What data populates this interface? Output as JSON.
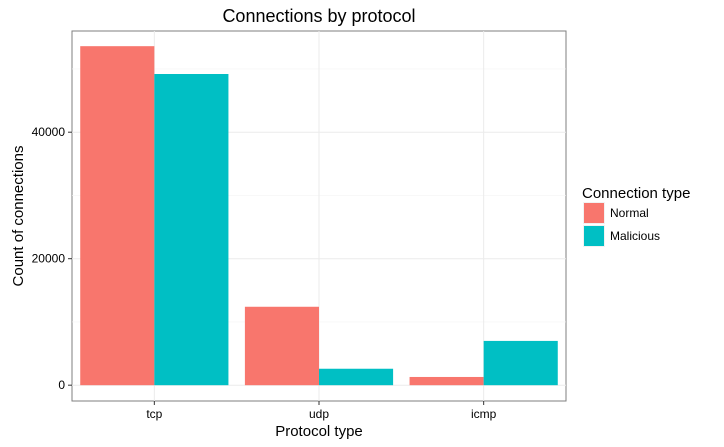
{
  "chart_data": {
    "type": "bar",
    "title": "Connections by protocol",
    "xlabel": "Protocol type",
    "ylabel": "Count of connections",
    "categories": [
      "tcp",
      "udp",
      "icmp"
    ],
    "series": [
      {
        "name": "Normal",
        "values": [
          53600,
          12400,
          1300
        ],
        "color": "#F8766D"
      },
      {
        "name": "Malicious",
        "values": [
          49200,
          2600,
          7000
        ],
        "color": "#00BFC4"
      }
    ],
    "ylim": [
      -2500,
      56000
    ],
    "yticks": [
      0,
      20000,
      40000
    ],
    "ytick_labels": [
      "0",
      "20000",
      "40000"
    ],
    "grid": true,
    "legend": {
      "title": "Connection type",
      "position": "right"
    }
  }
}
